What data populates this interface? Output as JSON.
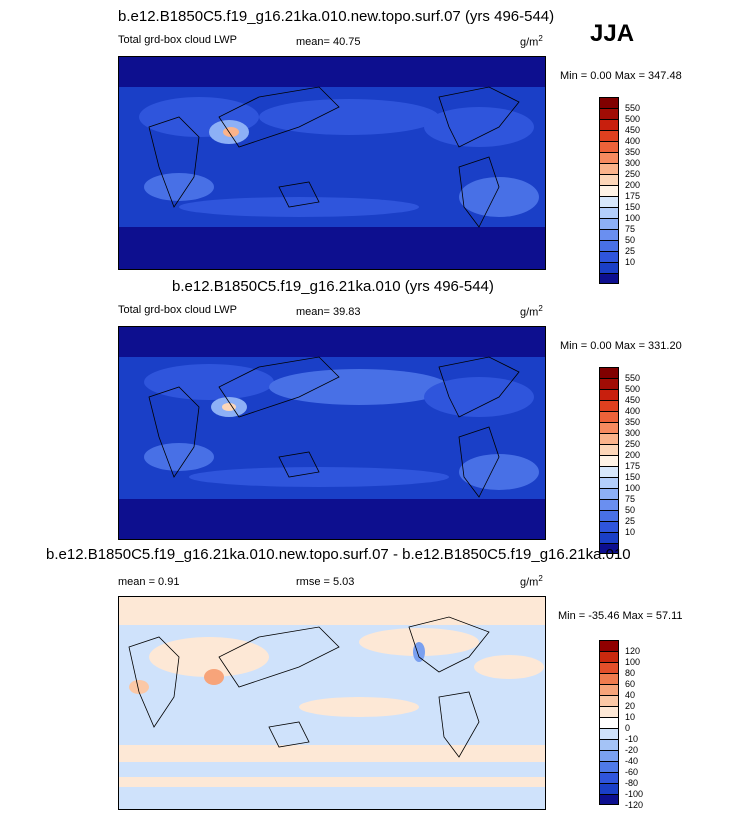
{
  "season": "JJA",
  "colors": {
    "lwp": [
      "#0d0f8f",
      "#1a3fc7",
      "#2f55dc",
      "#4870e6",
      "#6a8ff0",
      "#8db0f6",
      "#b4cffb",
      "#d8e8fc",
      "#fff3e6",
      "#fdd6b8",
      "#fbb38b",
      "#f78a5f",
      "#ee6239",
      "#e0401f",
      "#c81f0d",
      "#a00c05",
      "#800000"
    ],
    "diff": [
      "#0d0f8f",
      "#1a3fc7",
      "#2f55dc",
      "#4f7ae8",
      "#7aa0f0",
      "#a4c3f6",
      "#cfe2fb",
      "#ffffff",
      "#fde8d6",
      "#fbc8a6",
      "#f7a47a",
      "#f07b4e",
      "#e34f2a",
      "#c9290e",
      "#900000"
    ]
  },
  "panels": [
    {
      "title": "b.e12.B1850C5.f19_g16.21ka.010.new.topo.surf.07 (yrs 496-544)",
      "left_label": "Total grd-box cloud LWP",
      "mean_label": "mean=  40.75",
      "units": "g/m",
      "units_sup": "2",
      "minmax": "Min =   0.00 Max = 347.48",
      "levels": [
        "10",
        "25",
        "50",
        "75",
        "100",
        "150",
        "175",
        "200",
        "250",
        "300",
        "350",
        "400",
        "450",
        "500",
        "550"
      ]
    },
    {
      "title": "b.e12.B1850C5.f19_g16.21ka.010 (yrs 496-544)",
      "left_label": "Total grd-box cloud LWP",
      "mean_label": "mean=  39.83",
      "units": "g/m",
      "units_sup": "2",
      "minmax": "Min =   0.00 Max = 331.20",
      "levels": [
        "10",
        "25",
        "50",
        "75",
        "100",
        "150",
        "175",
        "200",
        "250",
        "300",
        "350",
        "400",
        "450",
        "500",
        "550"
      ]
    },
    {
      "title": "b.e12.B1850C5.f19_g16.21ka.010.new.topo.surf.07 - b.e12.B1850C5.f19_g16.21ka.010",
      "left_label": "mean =   0.91",
      "mean_label": "rmse =   5.03",
      "units": "g/m",
      "units_sup": "2",
      "minmax": "Min = -35.46 Max =  57.11",
      "levels": [
        "-120",
        "-100",
        "-80",
        "-60",
        "-40",
        "-20",
        "-10",
        "0",
        "10",
        "20",
        "40",
        "60",
        "80",
        "100",
        "120"
      ]
    }
  ]
}
